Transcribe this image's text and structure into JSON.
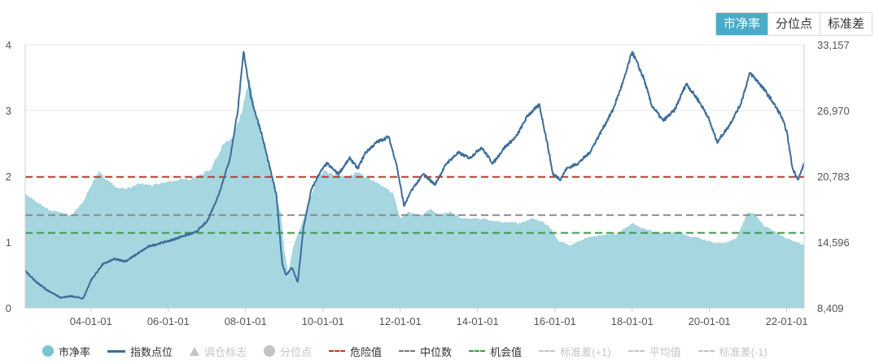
{
  "tabs": [
    {
      "label": "市净率",
      "active": true
    },
    {
      "label": "分位点",
      "active": false
    },
    {
      "label": "标准差",
      "active": false
    }
  ],
  "chart_data": {
    "type": "area+line",
    "x_ticks": [
      "04-01-01",
      "06-01-01",
      "08-01-01",
      "10-01-01",
      "12-01-01",
      "14-01-01",
      "16-01-01",
      "18-01-01",
      "20-01-01",
      "22-01-01"
    ],
    "x_range": [
      2002.3,
      2022.45
    ],
    "y_left": {
      "range": [
        0,
        4
      ],
      "ticks": [
        "0",
        "1",
        "2",
        "3",
        "4"
      ]
    },
    "y_right": {
      "range": [
        8409,
        33157
      ],
      "ticks": [
        "8,409",
        "14,596",
        "20,783",
        "26,970",
        "33,157"
      ]
    },
    "reference_lines": {
      "危险值": {
        "value": 1.99,
        "color": "#c0392b"
      },
      "中位数": {
        "value": 1.41,
        "color": "#8a8a8a"
      },
      "机会值": {
        "value": 1.14,
        "color": "#3d9a4a"
      }
    },
    "series": [
      {
        "name": "市净率",
        "color": "#a6d6df",
        "axis": "left",
        "points": [
          [
            2002.3,
            1.72
          ],
          [
            2002.6,
            1.6
          ],
          [
            2002.9,
            1.48
          ],
          [
            2003.2,
            1.45
          ],
          [
            2003.5,
            1.4
          ],
          [
            2003.8,
            1.6
          ],
          [
            2004.0,
            1.85
          ],
          [
            2004.2,
            2.05
          ],
          [
            2004.4,
            1.95
          ],
          [
            2004.7,
            1.8
          ],
          [
            2005.0,
            1.82
          ],
          [
            2005.3,
            1.88
          ],
          [
            2005.6,
            1.85
          ],
          [
            2005.9,
            1.9
          ],
          [
            2006.2,
            1.93
          ],
          [
            2006.5,
            1.95
          ],
          [
            2006.8,
            2.0
          ],
          [
            2007.1,
            2.1
          ],
          [
            2007.4,
            2.45
          ],
          [
            2007.7,
            2.6
          ],
          [
            2007.9,
            2.95
          ],
          [
            2008.1,
            3.45
          ],
          [
            2008.3,
            2.8
          ],
          [
            2008.5,
            2.4
          ],
          [
            2008.7,
            1.9
          ],
          [
            2008.9,
            1.45
          ],
          [
            2009.0,
            0.85
          ],
          [
            2009.1,
            0.5
          ],
          [
            2009.25,
            0.95
          ],
          [
            2009.45,
            1.25
          ],
          [
            2009.65,
            1.6
          ],
          [
            2009.85,
            1.95
          ],
          [
            2010.05,
            2.1
          ],
          [
            2010.3,
            2.0
          ],
          [
            2010.6,
            2.0
          ],
          [
            2010.9,
            2.05
          ],
          [
            2011.2,
            1.95
          ],
          [
            2011.5,
            1.85
          ],
          [
            2011.8,
            1.75
          ],
          [
            2012.0,
            1.35
          ],
          [
            2012.2,
            1.45
          ],
          [
            2012.5,
            1.4
          ],
          [
            2012.8,
            1.5
          ],
          [
            2013.0,
            1.4
          ],
          [
            2013.3,
            1.45
          ],
          [
            2013.6,
            1.35
          ],
          [
            2013.9,
            1.35
          ],
          [
            2014.2,
            1.35
          ],
          [
            2014.5,
            1.3
          ],
          [
            2014.8,
            1.3
          ],
          [
            2015.1,
            1.28
          ],
          [
            2015.4,
            1.35
          ],
          [
            2015.7,
            1.3
          ],
          [
            2015.9,
            1.2
          ],
          [
            2016.1,
            1.0
          ],
          [
            2016.4,
            0.95
          ],
          [
            2016.8,
            1.05
          ],
          [
            2017.2,
            1.1
          ],
          [
            2017.6,
            1.12
          ],
          [
            2018.0,
            1.28
          ],
          [
            2018.3,
            1.2
          ],
          [
            2018.6,
            1.15
          ],
          [
            2018.9,
            1.12
          ],
          [
            2019.2,
            1.15
          ],
          [
            2019.5,
            1.08
          ],
          [
            2019.8,
            1.05
          ],
          [
            2020.1,
            0.98
          ],
          [
            2020.4,
            0.98
          ],
          [
            2020.7,
            1.05
          ],
          [
            2021.0,
            1.45
          ],
          [
            2021.2,
            1.4
          ],
          [
            2021.4,
            1.25
          ],
          [
            2021.7,
            1.15
          ],
          [
            2022.0,
            1.05
          ],
          [
            2022.2,
            1.0
          ],
          [
            2022.45,
            0.95
          ]
        ]
      },
      {
        "name": "指数点位",
        "color": "#3c6d99",
        "axis": "right",
        "points": [
          [
            2002.3,
            11900
          ],
          [
            2002.6,
            10800
          ],
          [
            2002.9,
            10000
          ],
          [
            2003.2,
            9400
          ],
          [
            2003.5,
            9500
          ],
          [
            2003.8,
            9300
          ],
          [
            2004.0,
            11000
          ],
          [
            2004.3,
            12500
          ],
          [
            2004.6,
            13000
          ],
          [
            2004.9,
            12800
          ],
          [
            2005.2,
            13500
          ],
          [
            2005.5,
            14200
          ],
          [
            2005.8,
            14500
          ],
          [
            2006.1,
            14800
          ],
          [
            2006.4,
            15200
          ],
          [
            2006.7,
            15500
          ],
          [
            2007.0,
            16500
          ],
          [
            2007.3,
            19000
          ],
          [
            2007.6,
            22500
          ],
          [
            2007.8,
            27000
          ],
          [
            2007.95,
            32500
          ],
          [
            2008.15,
            28000
          ],
          [
            2008.4,
            25000
          ],
          [
            2008.6,
            22000
          ],
          [
            2008.8,
            19000
          ],
          [
            2008.95,
            12500
          ],
          [
            2009.05,
            11500
          ],
          [
            2009.2,
            12200
          ],
          [
            2009.35,
            10800
          ],
          [
            2009.5,
            16000
          ],
          [
            2009.7,
            19500
          ],
          [
            2009.9,
            21000
          ],
          [
            2010.1,
            22000
          ],
          [
            2010.4,
            21000
          ],
          [
            2010.7,
            22500
          ],
          [
            2010.9,
            21500
          ],
          [
            2011.1,
            23000
          ],
          [
            2011.4,
            24000
          ],
          [
            2011.7,
            24500
          ],
          [
            2011.9,
            22000
          ],
          [
            2012.1,
            18000
          ],
          [
            2012.3,
            19500
          ],
          [
            2012.6,
            21000
          ],
          [
            2012.9,
            20000
          ],
          [
            2013.2,
            22000
          ],
          [
            2013.5,
            23000
          ],
          [
            2013.8,
            22500
          ],
          [
            2014.1,
            23500
          ],
          [
            2014.4,
            22000
          ],
          [
            2014.7,
            23500
          ],
          [
            2015.0,
            24500
          ],
          [
            2015.3,
            26500
          ],
          [
            2015.6,
            27500
          ],
          [
            2015.8,
            24000
          ],
          [
            2015.95,
            21000
          ],
          [
            2016.15,
            20500
          ],
          [
            2016.3,
            21500
          ],
          [
            2016.6,
            22000
          ],
          [
            2016.9,
            23000
          ],
          [
            2017.2,
            25000
          ],
          [
            2017.5,
            27000
          ],
          [
            2017.8,
            30000
          ],
          [
            2018.0,
            32500
          ],
          [
            2018.3,
            30000
          ],
          [
            2018.5,
            27500
          ],
          [
            2018.8,
            26000
          ],
          [
            2019.1,
            27000
          ],
          [
            2019.4,
            29500
          ],
          [
            2019.7,
            28000
          ],
          [
            2019.95,
            26500
          ],
          [
            2020.2,
            24000
          ],
          [
            2020.5,
            25500
          ],
          [
            2020.8,
            27500
          ],
          [
            2021.05,
            30500
          ],
          [
            2021.3,
            29500
          ],
          [
            2021.6,
            28000
          ],
          [
            2021.85,
            26500
          ],
          [
            2022.0,
            25000
          ],
          [
            2022.15,
            21500
          ],
          [
            2022.3,
            20500
          ],
          [
            2022.45,
            22000
          ]
        ]
      }
    ],
    "legend": [
      {
        "label": "市净率",
        "symbol": "circle",
        "color": "#7cc4d2",
        "active": true
      },
      {
        "label": "指数点位",
        "symbol": "line",
        "color": "#3c6d99",
        "active": true
      },
      {
        "label": "调仓标志",
        "symbol": "triangle",
        "color": "#c4c4c4",
        "active": false
      },
      {
        "label": "分位点",
        "symbol": "circle",
        "color": "#c4c4c4",
        "active": false
      },
      {
        "label": "危险值",
        "symbol": "dash",
        "color": "#c0392b",
        "active": true
      },
      {
        "label": "中位数",
        "symbol": "dash",
        "color": "#777777",
        "active": true
      },
      {
        "label": "机会值",
        "symbol": "dash",
        "color": "#3d9a4a",
        "active": true
      },
      {
        "label": "标准差(+1)",
        "symbol": "dash",
        "color": "#c4c4c4",
        "active": false
      },
      {
        "label": "平均值",
        "symbol": "dash",
        "color": "#c4c4c4",
        "active": false
      },
      {
        "label": "标准差(-1)",
        "symbol": "dash",
        "color": "#c4c4c4",
        "active": false
      }
    ]
  }
}
